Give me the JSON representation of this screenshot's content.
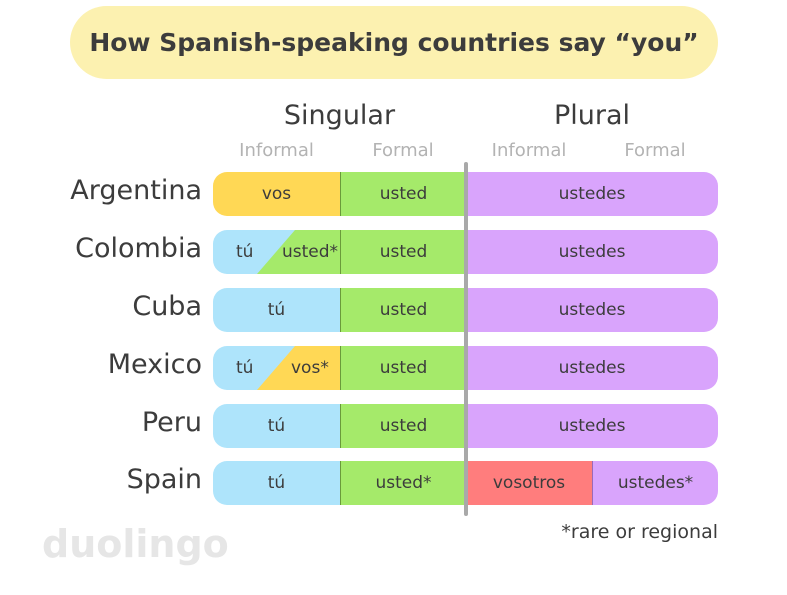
{
  "title": "How Spanish-speaking countries say “you”",
  "headers": {
    "singular": "Singular",
    "plural": "Plural"
  },
  "subheaders": {
    "singular_informal": "Informal",
    "singular_formal": "Formal",
    "plural_informal": "Informal",
    "plural_formal": "Formal"
  },
  "colors": {
    "yellow": "#ffd855",
    "green": "#a5ea6a",
    "blue": "#aee4fb",
    "purple": "#d9a4fc",
    "red": "#ff7d7d",
    "title_bg": "#fcf1b0"
  },
  "rows": [
    {
      "country": "Argentina",
      "sing_informal": "vos",
      "sing_formal": "usted",
      "plural": "ustedes"
    },
    {
      "country": "Colombia",
      "sing_informal_a": "tú",
      "sing_informal_b": "usted*",
      "sing_formal": "usted",
      "plural": "ustedes"
    },
    {
      "country": "Cuba",
      "sing_informal": "tú",
      "sing_formal": "usted",
      "plural": "ustedes"
    },
    {
      "country": "Mexico",
      "sing_informal_a": "tú",
      "sing_informal_b": "vos*",
      "sing_formal": "usted",
      "plural": "ustedes"
    },
    {
      "country": "Peru",
      "sing_informal": "tú",
      "sing_formal": "usted",
      "plural": "ustedes"
    },
    {
      "country": "Spain",
      "sing_informal": "tú",
      "sing_formal": "usted*",
      "plural_informal": "vosotros",
      "plural_formal": "ustedes*"
    }
  ],
  "footnote": "*rare or regional",
  "logo": "duolingo"
}
